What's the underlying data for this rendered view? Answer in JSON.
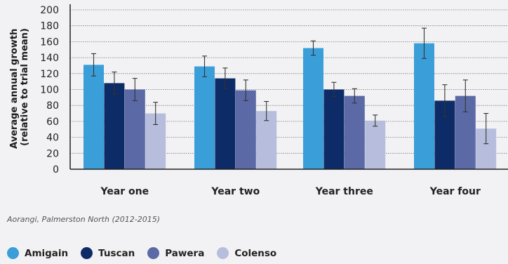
{
  "chart_data": {
    "type": "bar",
    "ylabel": "Average annual growth\n(relative to trial mean)",
    "ylim": [
      0,
      200
    ],
    "yticks": [
      0,
      20,
      40,
      60,
      80,
      100,
      120,
      140,
      160,
      180,
      200
    ],
    "grid": true,
    "legend_position": "bottom-left",
    "categories": [
      "Year one",
      "Year two",
      "Year three",
      "Year four"
    ],
    "series": [
      {
        "name": "Amigain",
        "color": "#3a9fd9",
        "values": [
          131,
          129,
          152,
          158
        ],
        "error": [
          14,
          13,
          9,
          19
        ]
      },
      {
        "name": "Tuscan",
        "color": "#0d2b66",
        "values": [
          108,
          114,
          100,
          86
        ],
        "error": [
          14,
          13,
          9,
          20
        ]
      },
      {
        "name": "Pawera",
        "color": "#5b6aa6",
        "values": [
          100,
          99,
          92,
          92
        ],
        "error": [
          14,
          13,
          9,
          20
        ]
      },
      {
        "name": "Colenso",
        "color": "#b7bedd",
        "values": [
          70,
          73,
          61,
          51
        ],
        "error": [
          14,
          12,
          7,
          19
        ]
      }
    ]
  },
  "caption": "Aorangi, Palmerston North (2012-2015)"
}
